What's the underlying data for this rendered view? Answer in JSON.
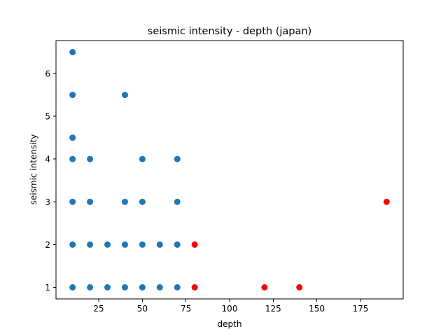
{
  "chart_data": {
    "type": "scatter",
    "title": "seismic intensity - depth (japan)",
    "xlabel": "depth",
    "ylabel": "seismic intensity",
    "xlim": [
      0.5,
      199.5
    ],
    "ylim": [
      0.73,
      6.77
    ],
    "xticks": [
      25,
      50,
      75,
      100,
      125,
      150,
      175
    ],
    "yticks": [
      1,
      2,
      3,
      4,
      5,
      6
    ],
    "grid": false,
    "series": [
      {
        "color": "#1f77b4",
        "points": [
          [
            10,
            6.5
          ],
          [
            10,
            5.5
          ],
          [
            10,
            4.5
          ],
          [
            10,
            4
          ],
          [
            10,
            3
          ],
          [
            10,
            2
          ],
          [
            10,
            1
          ],
          [
            20,
            4
          ],
          [
            20,
            3
          ],
          [
            20,
            2
          ],
          [
            20,
            1
          ],
          [
            30,
            2
          ],
          [
            30,
            1
          ],
          [
            40,
            5.5
          ],
          [
            40,
            3
          ],
          [
            40,
            2
          ],
          [
            40,
            1
          ],
          [
            50,
            4
          ],
          [
            50,
            3
          ],
          [
            50,
            2
          ],
          [
            50,
            1
          ],
          [
            60,
            2
          ],
          [
            60,
            1
          ],
          [
            70,
            4
          ],
          [
            70,
            3
          ],
          [
            70,
            2
          ],
          [
            70,
            1
          ]
        ]
      },
      {
        "color": "#ff0000",
        "points": [
          [
            80,
            2
          ],
          [
            80,
            1
          ],
          [
            120,
            1
          ],
          [
            140,
            1
          ],
          [
            190,
            3
          ]
        ]
      }
    ]
  }
}
